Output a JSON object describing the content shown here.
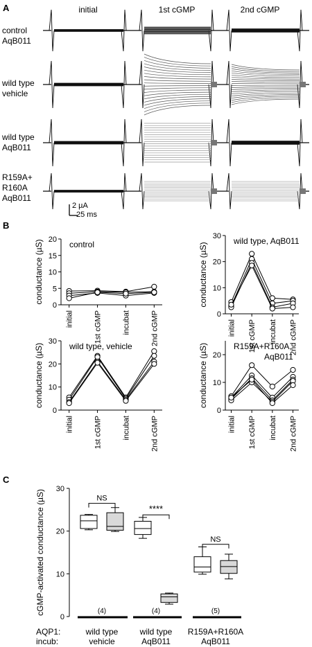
{
  "panels": {
    "A": "A",
    "B": "B",
    "C": "C"
  },
  "panelA": {
    "col_titles": [
      "initial",
      "1st cGMP",
      "2nd cGMP"
    ],
    "rows": [
      {
        "line1": "control",
        "line2": "AqB011",
        "line3": ""
      },
      {
        "line1": "wild type",
        "line2": "vehicle",
        "line3": ""
      },
      {
        "line1": "wild type",
        "line2": "AqB011",
        "line3": ""
      },
      {
        "line1": "R159A+",
        "line2": "R160A",
        "line3": "AqB011"
      }
    ],
    "scale_current": "2 µA",
    "scale_time": "25 ms"
  },
  "chart_data": [
    {
      "type": "line",
      "title": "control",
      "ylabel": "conductance (µS)",
      "categories": [
        "initial",
        "1st cGMP",
        "incubat",
        "2nd cGMP"
      ],
      "yticks": [
        0,
        5,
        10,
        15,
        20
      ],
      "ylim": [
        0,
        20
      ],
      "series": [
        {
          "values": [
            4.2,
            4.3,
            4.0,
            5.5
          ]
        },
        {
          "values": [
            3.5,
            4.0,
            3.8,
            4.0
          ]
        },
        {
          "values": [
            2.8,
            3.6,
            2.8,
            3.6
          ]
        },
        {
          "values": [
            2.0,
            3.8,
            3.4,
            3.8
          ]
        }
      ]
    },
    {
      "type": "line",
      "title": "wild type, AqB011",
      "ylabel": "conductance (µS)",
      "categories": [
        "initial",
        "1st cGMP",
        "incubat",
        "2nd cGMP"
      ],
      "yticks": [
        0,
        10,
        20,
        30
      ],
      "ylim": [
        0,
        30
      ],
      "series": [
        {
          "values": [
            4.5,
            23.0,
            6.0,
            5.5
          ]
        },
        {
          "values": [
            3.0,
            21.0,
            4.0,
            5.0
          ]
        },
        {
          "values": [
            2.5,
            19.5,
            2.5,
            4.0
          ]
        },
        {
          "values": [
            3.5,
            18.5,
            2.0,
            2.5
          ]
        }
      ]
    },
    {
      "type": "line",
      "title": "wild type, vehicle",
      "ylabel": "conductance (µS)",
      "categories": [
        "initial",
        "1st cGMP",
        "incubat",
        "2nd cGMP"
      ],
      "yticks": [
        0,
        10,
        20,
        30
      ],
      "ylim": [
        0,
        30
      ],
      "series": [
        {
          "values": [
            5.5,
            23.5,
            5.5,
            25.5
          ]
        },
        {
          "values": [
            4.5,
            23.0,
            5.0,
            23.5
          ]
        },
        {
          "values": [
            3.5,
            21.0,
            4.5,
            21.0
          ]
        },
        {
          "values": [
            3.0,
            20.5,
            4.0,
            20.0
          ]
        }
      ]
    },
    {
      "type": "line",
      "title": "R159A+R160A,",
      "title2": "AqB011",
      "ylabel": "conductance (µS)",
      "categories": [
        "initial",
        "1st cGMP",
        "incubat",
        "2nd cGMP"
      ],
      "yticks": [
        0,
        10,
        20
      ],
      "ylim": [
        0,
        25
      ],
      "series": [
        {
          "values": [
            5.0,
            16.2,
            8.5,
            14.5
          ]
        },
        {
          "values": [
            4.5,
            12.5,
            4.5,
            12.0
          ]
        },
        {
          "values": [
            4.0,
            11.5,
            3.5,
            11.0
          ]
        },
        {
          "values": [
            3.5,
            10.0,
            3.0,
            10.5
          ]
        },
        {
          "values": [
            4.5,
            11.0,
            2.5,
            9.0
          ]
        }
      ]
    },
    {
      "type": "box",
      "ylabel": "cGMP-activated conductance (µS)",
      "ylim": [
        0,
        30
      ],
      "yticks": [
        0,
        10,
        20,
        30
      ],
      "boxes": [
        {
          "fill": "#ffffff",
          "min": 20.3,
          "q1": 20.6,
          "median": 22.4,
          "q3": 23.7,
          "max": 23.9
        },
        {
          "fill": "#d9d9d9",
          "min": 19.9,
          "q1": 20.2,
          "median": 21.1,
          "q3": 24.3,
          "max": 25.5
        },
        {
          "fill": "#ffffff",
          "min": 18.3,
          "q1": 19.2,
          "median": 20.6,
          "q3": 22.3,
          "max": 23.2
        },
        {
          "fill": "#d9d9d9",
          "min": 2.9,
          "q1": 3.3,
          "median": 4.6,
          "q3": 5.3,
          "max": 5.5
        },
        {
          "fill": "#ffffff",
          "min": 9.9,
          "q1": 10.4,
          "median": 11.6,
          "q3": 14.0,
          "max": 16.3
        },
        {
          "fill": "#d9d9d9",
          "min": 8.8,
          "q1": 10.1,
          "median": 11.7,
          "q3": 13.1,
          "max": 14.6
        }
      ],
      "groups": [
        {
          "n": "(4)",
          "line1": "wild type",
          "line2": "vehicle"
        },
        {
          "n": "(4)",
          "line1": "wild type",
          "line2": "AqB011"
        },
        {
          "n": "(5)",
          "line1": "R159A+R160A",
          "line2": "AqB011"
        }
      ],
      "annotations": [
        {
          "text": "NS",
          "from": 0,
          "to": 1,
          "y": 26.5
        },
        {
          "text": "****",
          "from": 2,
          "to": 3,
          "y": 23.8
        },
        {
          "text": "NS",
          "from": 4,
          "to": 5,
          "y": 16.9
        }
      ],
      "row_labels": [
        "AQP1:",
        "incub:"
      ]
    }
  ]
}
